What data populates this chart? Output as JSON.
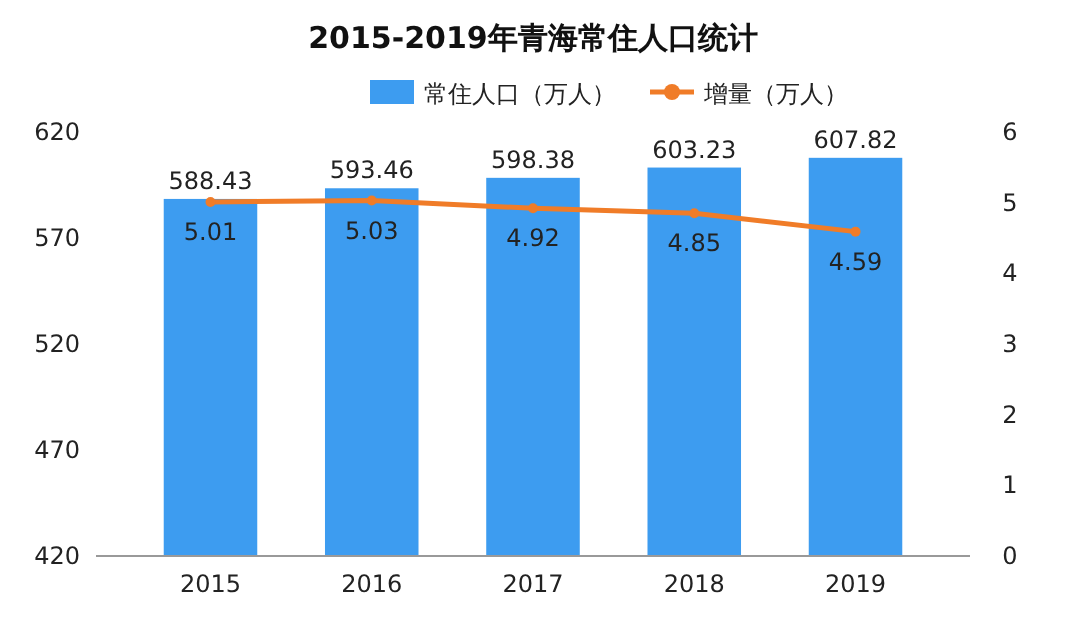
{
  "chart_data": {
    "type": "bar",
    "title": "2015-2019年青海常住人口统计",
    "categories": [
      "2015",
      "2016",
      "2017",
      "2018",
      "2019"
    ],
    "series": [
      {
        "name": "常住人口（万人）",
        "color": "#3d9cf0",
        "values": [
          588.43,
          593.46,
          598.38,
          603.23,
          607.82
        ]
      },
      {
        "name": "增量（万人）",
        "type": "line",
        "color": "#f07c28",
        "axis": "y2",
        "values": [
          5.01,
          5.03,
          4.92,
          4.85,
          4.59
        ]
      }
    ],
    "ylim": [
      420,
      620
    ],
    "yticks": [
      420,
      470,
      520,
      570,
      620
    ],
    "y2lim": [
      0,
      6
    ],
    "y2ticks": [
      0,
      1,
      2,
      3,
      4,
      5,
      6
    ],
    "data_labels": true,
    "legend": "top",
    "grid": false,
    "marker": "circle"
  }
}
